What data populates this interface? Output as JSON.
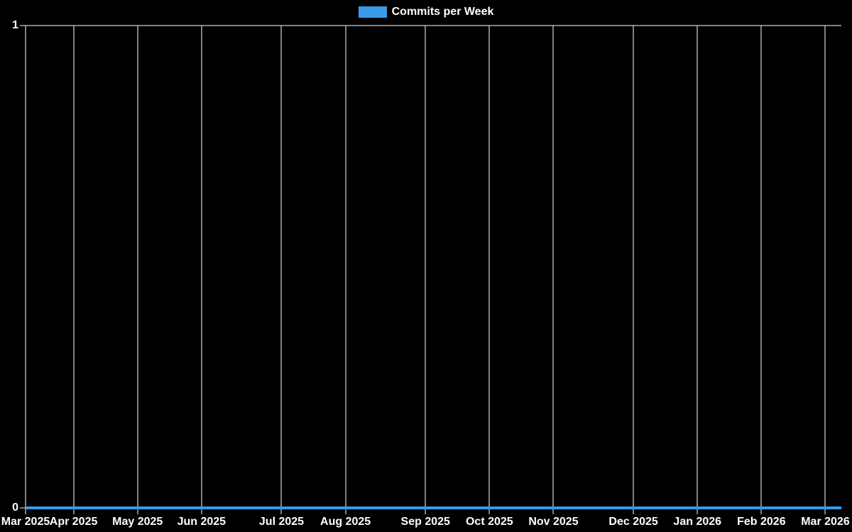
{
  "chart": {
    "legend": {
      "label": "Commits per Week"
    },
    "colors": {
      "background": "#000000",
      "text": "#ffffff",
      "grid": "#ffffff",
      "line": "#3a9ae8"
    }
  },
  "chart_data": {
    "type": "line",
    "title": "",
    "xlabel": "",
    "ylabel": "",
    "legend_position": "top",
    "grid": "vertical-gridlines-plus-top-border",
    "x_unit": "week",
    "x_weeks_total": 51,
    "x_ticks": [
      {
        "week": 0,
        "label": "Mar 2025"
      },
      {
        "week": 3,
        "label": "Apr 2025"
      },
      {
        "week": 7,
        "label": "May 2025"
      },
      {
        "week": 11,
        "label": "Jun 2025"
      },
      {
        "week": 16,
        "label": "Jul 2025"
      },
      {
        "week": 20,
        "label": "Aug 2025"
      },
      {
        "week": 25,
        "label": "Sep 2025"
      },
      {
        "week": 29,
        "label": "Oct 2025"
      },
      {
        "week": 33,
        "label": "Nov 2025"
      },
      {
        "week": 38,
        "label": "Dec 2025"
      },
      {
        "week": 42,
        "label": "Jan 2026"
      },
      {
        "week": 46,
        "label": "Feb 2026"
      },
      {
        "week": 50,
        "label": "Mar 2026"
      }
    ],
    "y_ticks": [
      0,
      1
    ],
    "ylim": [
      0,
      1
    ],
    "series": [
      {
        "name": "Commits per Week",
        "values": [
          0,
          0,
          0,
          0,
          0,
          0,
          0,
          0,
          0,
          0,
          0,
          0,
          0,
          0,
          0,
          0,
          0,
          0,
          0,
          0,
          0,
          0,
          0,
          0,
          0,
          0,
          0,
          0,
          0,
          0,
          0,
          0,
          0,
          0,
          0,
          0,
          0,
          0,
          0,
          0,
          0,
          0,
          0,
          0,
          0,
          0,
          0,
          0,
          0,
          0,
          0,
          0
        ]
      }
    ]
  }
}
